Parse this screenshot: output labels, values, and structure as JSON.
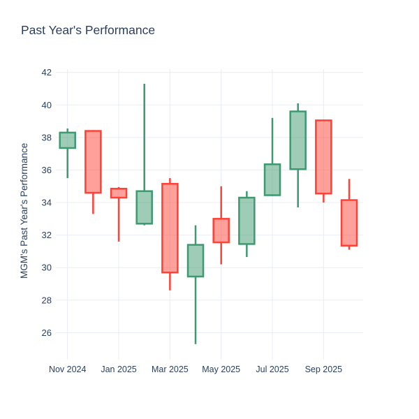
{
  "title": "Past Year's Performance",
  "chart_data": {
    "type": "candlestick",
    "title": "Past Year's Performance",
    "xlabel": "",
    "ylabel": "MGM's Past Year's Performance",
    "grid": true,
    "legend": false,
    "ylim": [
      24.6,
      42.2
    ],
    "y_ticks": [
      26,
      28,
      30,
      32,
      34,
      36,
      38,
      40,
      42
    ],
    "x_tick_labels": [
      "Nov 2024",
      "Jan 2025",
      "Mar 2025",
      "May 2025",
      "Jul 2025",
      "Sep 2025"
    ],
    "x_tick_month_index": [
      0,
      2,
      4,
      6,
      8,
      10
    ],
    "categories": [
      "Nov 2024",
      "Dec 2024",
      "Jan 2025",
      "Feb 2025",
      "Mar 2025",
      "Apr 2025",
      "May 2025",
      "Jun 2025",
      "Jul 2025",
      "Aug 2025",
      "Sep 2025",
      "Oct 2025"
    ],
    "series": [
      {
        "month": "Nov 2024",
        "open": 37.35,
        "high": 38.55,
        "low": 35.5,
        "close": 38.3,
        "direction": "up"
      },
      {
        "month": "Dec 2024",
        "open": 38.4,
        "high": 38.45,
        "low": 33.3,
        "close": 34.6,
        "direction": "down"
      },
      {
        "month": "Jan 2025",
        "open": 34.85,
        "high": 34.95,
        "low": 31.6,
        "close": 34.3,
        "direction": "down"
      },
      {
        "month": "Feb 2025",
        "open": 32.7,
        "high": 41.3,
        "low": 32.6,
        "close": 34.7,
        "direction": "up"
      },
      {
        "month": "Mar 2025",
        "open": 35.15,
        "high": 35.5,
        "low": 28.6,
        "close": 29.7,
        "direction": "down"
      },
      {
        "month": "Apr 2025",
        "open": 29.45,
        "high": 32.6,
        "low": 25.3,
        "close": 31.4,
        "direction": "up"
      },
      {
        "month": "May 2025",
        "open": 33.0,
        "high": 35.0,
        "low": 30.2,
        "close": 31.55,
        "direction": "down"
      },
      {
        "month": "Jun 2025",
        "open": 31.45,
        "high": 34.7,
        "low": 30.65,
        "close": 34.3,
        "direction": "up"
      },
      {
        "month": "Jul 2025",
        "open": 34.45,
        "high": 39.2,
        "low": 34.4,
        "close": 36.35,
        "direction": "up"
      },
      {
        "month": "Aug 2025",
        "open": 36.05,
        "high": 40.1,
        "low": 33.7,
        "close": 39.6,
        "direction": "up"
      },
      {
        "month": "Sep 2025",
        "open": 39.05,
        "high": 39.1,
        "low": 34.0,
        "close": 34.55,
        "direction": "down"
      },
      {
        "month": "Oct 2025",
        "open": 34.15,
        "high": 35.45,
        "low": 31.1,
        "close": 31.35,
        "direction": "down"
      }
    ],
    "colors": {
      "increasing_line": "#3d9970",
      "increasing_fill": "rgba(61,153,112,0.5)",
      "decreasing_line": "#ff4136",
      "decreasing_fill": "rgba(255,65,54,0.5)",
      "text": "#2a3f5f",
      "grid": "#e8edf4",
      "background": "#ffffff"
    }
  }
}
